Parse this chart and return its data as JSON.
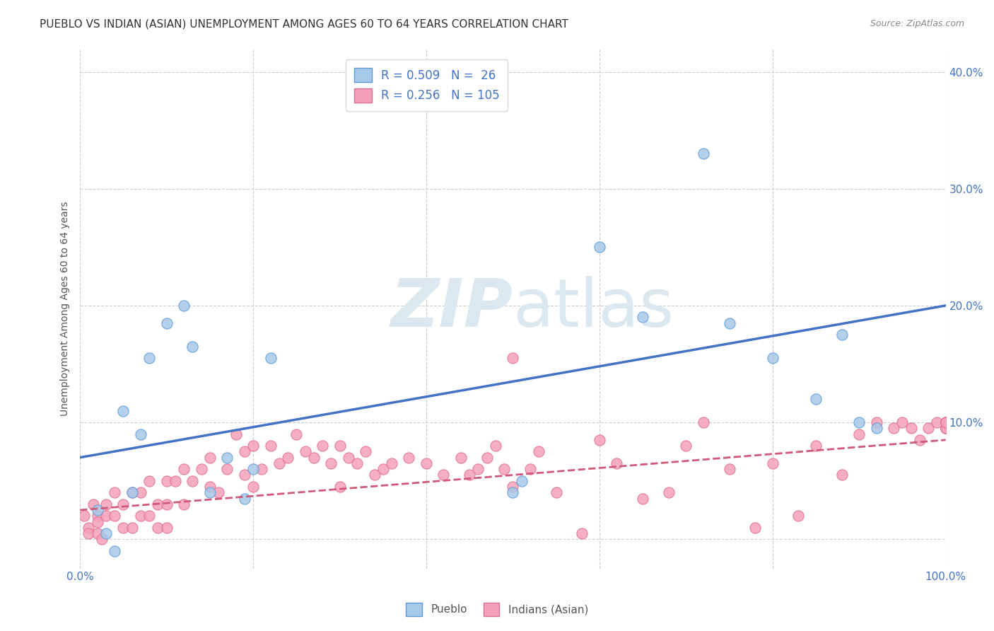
{
  "title": "PUEBLO VS INDIAN (ASIAN) UNEMPLOYMENT AMONG AGES 60 TO 64 YEARS CORRELATION CHART",
  "source": "Source: ZipAtlas.com",
  "ylabel": "Unemployment Among Ages 60 to 64 years",
  "xlim": [
    0,
    1.0
  ],
  "ylim": [
    -0.025,
    0.42
  ],
  "xticks": [
    0.0,
    0.2,
    0.4,
    0.6,
    0.8,
    1.0
  ],
  "xticklabels": [
    "0.0%",
    "",
    "",
    "",
    "",
    "100.0%"
  ],
  "yticks": [
    0.0,
    0.1,
    0.2,
    0.3,
    0.4
  ],
  "yticklabels": [
    "",
    "10.0%",
    "20.0%",
    "30.0%",
    "40.0%"
  ],
  "pueblo_color": "#a8c8e8",
  "indian_color": "#f4a0b8",
  "pueblo_edge_color": "#5b9bd5",
  "indian_edge_color": "#e07090",
  "pueblo_line_color": "#4472c4",
  "indian_line_color": "#d05878",
  "legend_text_color": "#4472c4",
  "pueblo_R": 0.509,
  "pueblo_N": 26,
  "indian_R": 0.256,
  "indian_N": 105,
  "pueblo_scatter_x": [
    0.02,
    0.03,
    0.04,
    0.05,
    0.06,
    0.07,
    0.08,
    0.1,
    0.12,
    0.13,
    0.15,
    0.17,
    0.19,
    0.2,
    0.22,
    0.5,
    0.51,
    0.6,
    0.65,
    0.72,
    0.75,
    0.8,
    0.85,
    0.88,
    0.9,
    0.92
  ],
  "pueblo_scatter_y": [
    0.025,
    0.005,
    -0.01,
    0.11,
    0.04,
    0.09,
    0.155,
    0.185,
    0.2,
    0.165,
    0.04,
    0.07,
    0.035,
    0.06,
    0.155,
    0.04,
    0.05,
    0.25,
    0.19,
    0.33,
    0.185,
    0.155,
    0.12,
    0.175,
    0.1,
    0.095
  ],
  "indian_scatter_x": [
    0.005,
    0.01,
    0.01,
    0.015,
    0.02,
    0.02,
    0.02,
    0.025,
    0.03,
    0.03,
    0.04,
    0.04,
    0.05,
    0.05,
    0.06,
    0.06,
    0.07,
    0.07,
    0.08,
    0.08,
    0.09,
    0.09,
    0.1,
    0.1,
    0.1,
    0.11,
    0.12,
    0.12,
    0.13,
    0.14,
    0.15,
    0.15,
    0.16,
    0.17,
    0.18,
    0.19,
    0.19,
    0.2,
    0.2,
    0.21,
    0.22,
    0.23,
    0.24,
    0.25,
    0.26,
    0.27,
    0.28,
    0.29,
    0.3,
    0.3,
    0.31,
    0.32,
    0.33,
    0.34,
    0.35,
    0.36,
    0.38,
    0.4,
    0.42,
    0.44,
    0.45,
    0.46,
    0.47,
    0.48,
    0.49,
    0.5,
    0.5,
    0.52,
    0.53,
    0.55,
    0.58,
    0.6,
    0.62,
    0.65,
    0.68,
    0.7,
    0.72,
    0.75,
    0.78,
    0.8,
    0.83,
    0.85,
    0.88,
    0.9,
    0.92,
    0.94,
    0.95,
    0.96,
    0.97,
    0.98,
    0.99,
    1.0,
    1.0,
    1.0,
    1.0,
    1.0,
    1.0,
    1.0,
    1.0,
    1.0,
    1.0,
    1.0,
    1.0,
    1.0,
    1.0
  ],
  "indian_scatter_y": [
    0.02,
    0.01,
    0.005,
    0.03,
    0.02,
    0.015,
    0.005,
    0.0,
    0.03,
    0.02,
    0.04,
    0.02,
    0.03,
    0.01,
    0.04,
    0.01,
    0.04,
    0.02,
    0.05,
    0.02,
    0.03,
    0.01,
    0.05,
    0.03,
    0.01,
    0.05,
    0.06,
    0.03,
    0.05,
    0.06,
    0.07,
    0.045,
    0.04,
    0.06,
    0.09,
    0.075,
    0.055,
    0.08,
    0.045,
    0.06,
    0.08,
    0.065,
    0.07,
    0.09,
    0.075,
    0.07,
    0.08,
    0.065,
    0.08,
    0.045,
    0.07,
    0.065,
    0.075,
    0.055,
    0.06,
    0.065,
    0.07,
    0.065,
    0.055,
    0.07,
    0.055,
    0.06,
    0.07,
    0.08,
    0.06,
    0.155,
    0.045,
    0.06,
    0.075,
    0.04,
    0.005,
    0.085,
    0.065,
    0.035,
    0.04,
    0.08,
    0.1,
    0.06,
    0.01,
    0.065,
    0.02,
    0.08,
    0.055,
    0.09,
    0.1,
    0.095,
    0.1,
    0.095,
    0.085,
    0.095,
    0.1,
    0.1,
    0.095,
    0.1,
    0.095,
    0.1,
    0.095,
    0.1,
    0.095,
    0.1,
    0.095,
    0.095,
    0.095,
    0.1,
    0.1
  ],
  "pueblo_trend_x": [
    0.0,
    1.0
  ],
  "pueblo_trend_y": [
    0.07,
    0.2
  ],
  "indian_trend_x": [
    0.0,
    1.0
  ],
  "indian_trend_y": [
    0.025,
    0.085
  ],
  "background_color": "#ffffff",
  "grid_color": "#cccccc",
  "watermark_color": "#dce8f0",
  "title_fontsize": 11,
  "label_fontsize": 10,
  "tick_fontsize": 11,
  "scatter_size": 120,
  "legend_fontsize": 12
}
